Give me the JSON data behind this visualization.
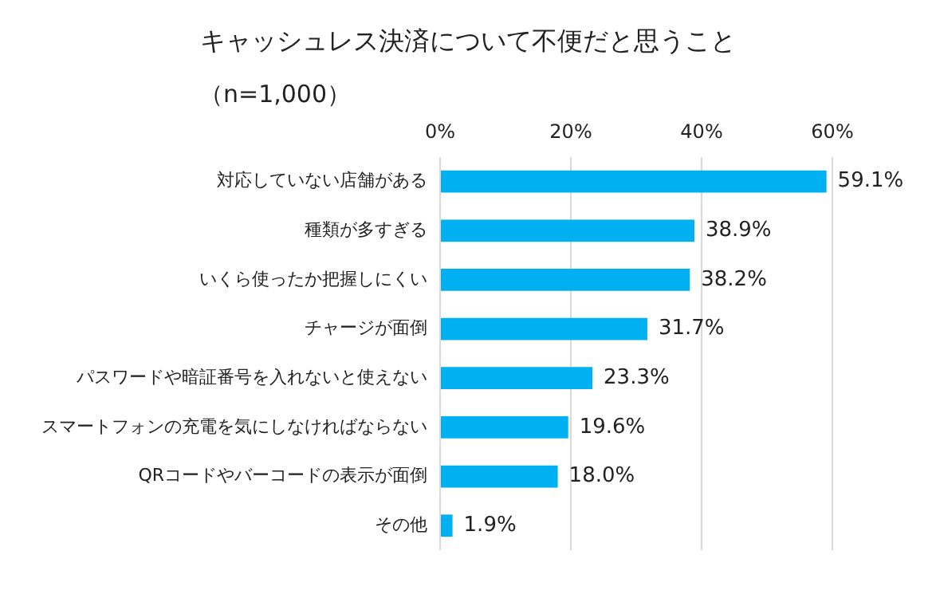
{
  "chart_data": {
    "type": "bar",
    "orientation": "horizontal",
    "title": "キャッシュレス決済について不便だと思うこと",
    "subtitle": "（n=1,000）",
    "categories": [
      "対応していない店舗がある",
      "種類が多すぎる",
      "いくら使ったか把握しにくい",
      "チャージが面倒",
      "パスワードや暗証番号を入れないと使えない",
      "スマートフォンの充電を気にしなければならない",
      "QRコードやバーコードの表示が面倒",
      "その他"
    ],
    "values": [
      59.1,
      38.9,
      38.2,
      31.7,
      23.3,
      19.6,
      18.0,
      1.9
    ],
    "value_labels": [
      "59.1%",
      "38.9%",
      "38.2%",
      "31.7%",
      "23.3%",
      "19.6%",
      "18.0%",
      "1.9%"
    ],
    "color": "#00b0f0",
    "xlim": [
      0,
      60
    ],
    "xticks": [
      {
        "value": 0,
        "label": "0%"
      },
      {
        "value": 20,
        "label": "20%"
      },
      {
        "value": 40,
        "label": "40%"
      },
      {
        "value": 60,
        "label": "60%"
      }
    ],
    "grid": "x",
    "legend": false
  }
}
